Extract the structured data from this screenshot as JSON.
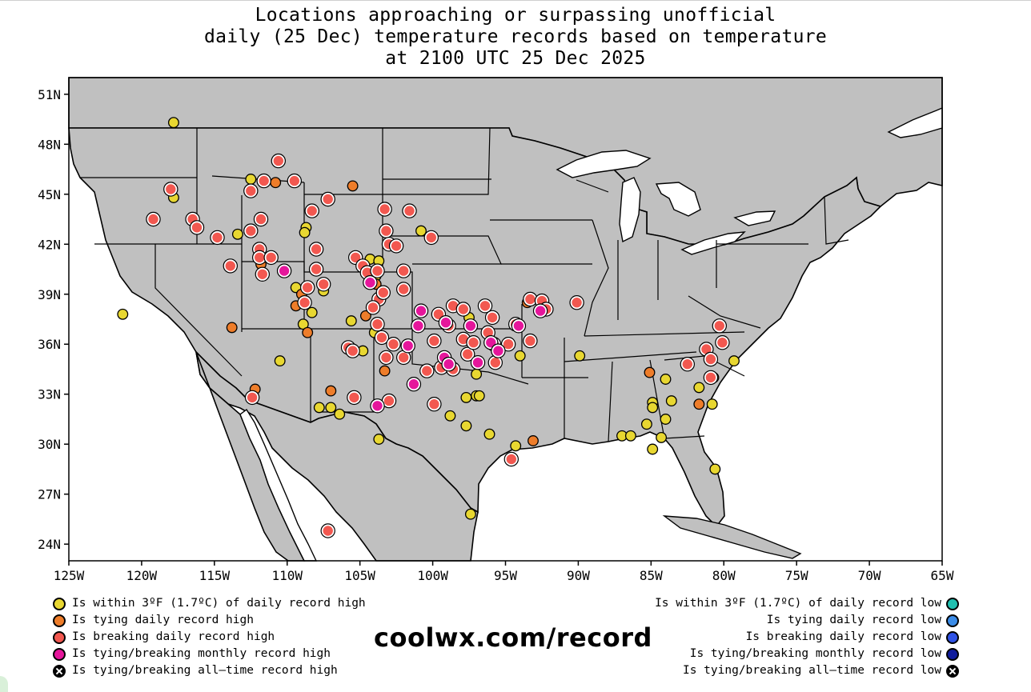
{
  "title_lines": [
    "Locations approaching or surpassing unofficial",
    "daily (25 Dec) temperature records based on temperature",
    "at 2100 UTC 25 Dec 2025"
  ],
  "branding": "coolwx.com/record",
  "map": {
    "lon_range": [
      -125,
      -65
    ],
    "lat_range": [
      23,
      52
    ],
    "lat_ticks": [
      {
        "value": 51,
        "label": "51N"
      },
      {
        "value": 48,
        "label": "48N"
      },
      {
        "value": 45,
        "label": "45N"
      },
      {
        "value": 42,
        "label": "42N"
      },
      {
        "value": 39,
        "label": "39N"
      },
      {
        "value": 36,
        "label": "36N"
      },
      {
        "value": 33,
        "label": "33N"
      },
      {
        "value": 30,
        "label": "30N"
      },
      {
        "value": 27,
        "label": "27N"
      },
      {
        "value": 24,
        "label": "24N"
      }
    ],
    "lon_ticks": [
      {
        "value": -125,
        "label": "125W"
      },
      {
        "value": -120,
        "label": "120W"
      },
      {
        "value": -115,
        "label": "115W"
      },
      {
        "value": -110,
        "label": "110W"
      },
      {
        "value": -105,
        "label": "105W"
      },
      {
        "value": -100,
        "label": "100W"
      },
      {
        "value": -95,
        "label": "95W"
      },
      {
        "value": -90,
        "label": "90W"
      },
      {
        "value": -85,
        "label": "85W"
      },
      {
        "value": -80,
        "label": "80W"
      },
      {
        "value": -75,
        "label": "75W"
      },
      {
        "value": -70,
        "label": "70W"
      },
      {
        "value": -65,
        "label": "65W"
      }
    ],
    "land_color": "#c0c0c0",
    "ocean_color": "#ffffff",
    "stations": {
      "near_high": [
        [
          -117.8,
          49.3
        ],
        [
          -117.8,
          44.8
        ],
        [
          -121.3,
          37.8
        ],
        [
          -112.5,
          45.9
        ],
        [
          -108.7,
          43.0
        ],
        [
          -108.8,
          42.7
        ],
        [
          -113.4,
          42.6
        ],
        [
          -104.3,
          41.1
        ],
        [
          -104.6,
          40.5
        ],
        [
          -103.9,
          40.4
        ],
        [
          -103.7,
          41.0
        ],
        [
          -103.9,
          40.1
        ],
        [
          -109.4,
          39.4
        ],
        [
          -107.5,
          39.2
        ],
        [
          -108.9,
          37.2
        ],
        [
          -108.3,
          37.9
        ],
        [
          -105.6,
          37.4
        ],
        [
          -104.0,
          36.7
        ],
        [
          -104.8,
          35.6
        ],
        [
          -110.5,
          35.0
        ],
        [
          -107.8,
          32.2
        ],
        [
          -107.0,
          32.2
        ],
        [
          -106.4,
          31.8
        ],
        [
          -103.7,
          30.3
        ],
        [
          -100.8,
          42.8
        ],
        [
          -97.5,
          37.6
        ],
        [
          -97.0,
          34.2
        ],
        [
          -97.7,
          32.8
        ],
        [
          -97.0,
          32.9
        ],
        [
          -96.8,
          32.9
        ],
        [
          -98.8,
          31.7
        ],
        [
          -97.7,
          31.1
        ],
        [
          -96.1,
          30.6
        ],
        [
          -94.3,
          29.9
        ],
        [
          -97.4,
          25.8
        ],
        [
          -94.0,
          35.3
        ],
        [
          -89.9,
          35.3
        ],
        [
          -84.0,
          33.9
        ],
        [
          -84.9,
          32.5
        ],
        [
          -84.9,
          32.2
        ],
        [
          -83.6,
          32.6
        ],
        [
          -84.0,
          31.5
        ],
        [
          -85.3,
          31.2
        ],
        [
          -87.0,
          30.5
        ],
        [
          -86.4,
          30.5
        ],
        [
          -84.3,
          30.4
        ],
        [
          -84.9,
          29.7
        ],
        [
          -81.7,
          33.4
        ],
        [
          -80.7,
          34.0
        ],
        [
          -79.3,
          35.0
        ],
        [
          -80.8,
          32.4
        ],
        [
          -80.6,
          28.5
        ]
      ],
      "tie_high": [
        [
          -105.5,
          45.5
        ],
        [
          -110.8,
          45.7
        ],
        [
          -111.8,
          43.6
        ],
        [
          -111.8,
          40.8
        ],
        [
          -109.0,
          39.0
        ],
        [
          -109.4,
          38.3
        ],
        [
          -108.6,
          36.7
        ],
        [
          -113.8,
          37.0
        ],
        [
          -112.2,
          33.3
        ],
        [
          -107.0,
          33.2
        ],
        [
          -104.6,
          37.7
        ],
        [
          -103.3,
          34.4
        ],
        [
          -103.9,
          39.6
        ],
        [
          -93.5,
          38.5
        ],
        [
          -90.1,
          38.5
        ],
        [
          -93.1,
          30.2
        ],
        [
          -85.1,
          34.3
        ],
        [
          -81.7,
          32.4
        ]
      ],
      "break_high": [
        [
          -118.0,
          45.3
        ],
        [
          -119.2,
          43.5
        ],
        [
          -116.5,
          43.5
        ],
        [
          -116.2,
          43.0
        ],
        [
          -114.8,
          42.4
        ],
        [
          -113.9,
          40.7
        ],
        [
          -112.5,
          45.2
        ],
        [
          -111.6,
          45.8
        ],
        [
          -110.6,
          47.0
        ],
        [
          -109.5,
          45.8
        ],
        [
          -108.3,
          44.0
        ],
        [
          -107.2,
          44.7
        ],
        [
          -111.8,
          43.5
        ],
        [
          -112.5,
          42.8
        ],
        [
          -111.9,
          41.7
        ],
        [
          -111.9,
          41.2
        ],
        [
          -111.7,
          40.2
        ],
        [
          -111.1,
          41.2
        ],
        [
          -108.0,
          41.7
        ],
        [
          -105.3,
          41.2
        ],
        [
          -104.8,
          40.7
        ],
        [
          -104.5,
          40.3
        ],
        [
          -103.8,
          40.4
        ],
        [
          -103.7,
          38.7
        ],
        [
          -103.4,
          39.1
        ],
        [
          -103.2,
          42.8
        ],
        [
          -103.3,
          44.1
        ],
        [
          -101.6,
          44.0
        ],
        [
          -103.0,
          42.0
        ],
        [
          -102.5,
          41.9
        ],
        [
          -102.0,
          40.4
        ],
        [
          -102.0,
          39.3
        ],
        [
          -100.1,
          42.4
        ],
        [
          -108.0,
          40.5
        ],
        [
          -108.6,
          39.4
        ],
        [
          -107.5,
          39.6
        ],
        [
          -108.8,
          38.5
        ],
        [
          -105.8,
          35.8
        ],
        [
          -105.5,
          35.6
        ],
        [
          -105.4,
          32.8
        ],
        [
          -104.1,
          38.2
        ],
        [
          -103.8,
          37.2
        ],
        [
          -103.5,
          36.4
        ],
        [
          -102.7,
          36.0
        ],
        [
          -103.2,
          35.2
        ],
        [
          -102.0,
          35.2
        ],
        [
          -103.0,
          32.6
        ],
        [
          -99.6,
          37.8
        ],
        [
          -98.6,
          38.3
        ],
        [
          -97.9,
          38.1
        ],
        [
          -96.4,
          38.3
        ],
        [
          -95.9,
          37.6
        ],
        [
          -99.9,
          36.2
        ],
        [
          -98.9,
          37.1
        ],
        [
          -97.9,
          36.3
        ],
        [
          -97.6,
          35.4
        ],
        [
          -97.2,
          36.1
        ],
        [
          -96.2,
          36.7
        ],
        [
          -95.8,
          36.0
        ],
        [
          -94.8,
          36.0
        ],
        [
          -94.3,
          37.2
        ],
        [
          -93.3,
          36.2
        ],
        [
          -100.4,
          34.4
        ],
        [
          -99.4,
          34.6
        ],
        [
          -98.6,
          34.5
        ],
        [
          -99.9,
          32.4
        ],
        [
          -94.6,
          29.1
        ],
        [
          -95.7,
          34.9
        ],
        [
          -93.3,
          38.7
        ],
        [
          -92.5,
          38.6
        ],
        [
          -92.2,
          38.1
        ],
        [
          -90.1,
          38.5
        ],
        [
          -107.2,
          24.8
        ],
        [
          -112.4,
          32.8
        ],
        [
          -80.3,
          37.1
        ],
        [
          -80.1,
          36.1
        ],
        [
          -81.2,
          35.7
        ],
        [
          -80.9,
          35.1
        ],
        [
          -82.5,
          34.8
        ],
        [
          -80.9,
          34.0
        ]
      ],
      "monthly_high": [
        [
          -110.2,
          40.4
        ],
        [
          -104.3,
          39.7
        ],
        [
          -100.8,
          38.0
        ],
        [
          -101.0,
          37.1
        ],
        [
          -99.1,
          37.3
        ],
        [
          -97.4,
          37.1
        ],
        [
          -99.2,
          35.2
        ],
        [
          -98.9,
          34.8
        ],
        [
          -96.9,
          34.9
        ],
        [
          -96.0,
          36.1
        ],
        [
          -95.5,
          35.6
        ],
        [
          -101.7,
          35.9
        ],
        [
          -101.3,
          33.6
        ],
        [
          -103.8,
          32.3
        ],
        [
          -94.1,
          37.1
        ],
        [
          -92.6,
          38.0
        ]
      ],
      "near_low": [],
      "tie_low": [],
      "break_low": [],
      "monthly_low": [],
      "alltime": []
    }
  },
  "colors": {
    "near_high": "#e8d731",
    "tie_high": "#ee7d2a",
    "break_high": "#f25850",
    "monthly_high": "#e5169b",
    "near_low": "#20c0b0",
    "tie_low": "#3b8ce8",
    "break_low": "#2f52e5",
    "monthly_low": "#101c9c",
    "alltime": "#000000"
  },
  "legend_left": [
    {
      "key": "near_high",
      "label": "Is within 3ºF (1.7ºC) of daily record high"
    },
    {
      "key": "tie_high",
      "label": "Is tying daily record high"
    },
    {
      "key": "break_high",
      "label": "Is breaking daily record high"
    },
    {
      "key": "monthly_high",
      "label": "Is tying/breaking monthly record high"
    },
    {
      "key": "alltime",
      "label": "Is tying/breaking all–time record high"
    }
  ],
  "legend_right": [
    {
      "key": "near_low",
      "label": "Is within 3ºF (1.7ºC) of daily record low"
    },
    {
      "key": "tie_low",
      "label": "Is tying daily record low"
    },
    {
      "key": "break_low",
      "label": "Is breaking daily record low"
    },
    {
      "key": "monthly_low",
      "label": "Is tying/breaking monthly record low"
    },
    {
      "key": "alltime",
      "label": "Is tying/breaking all–time record low"
    }
  ]
}
